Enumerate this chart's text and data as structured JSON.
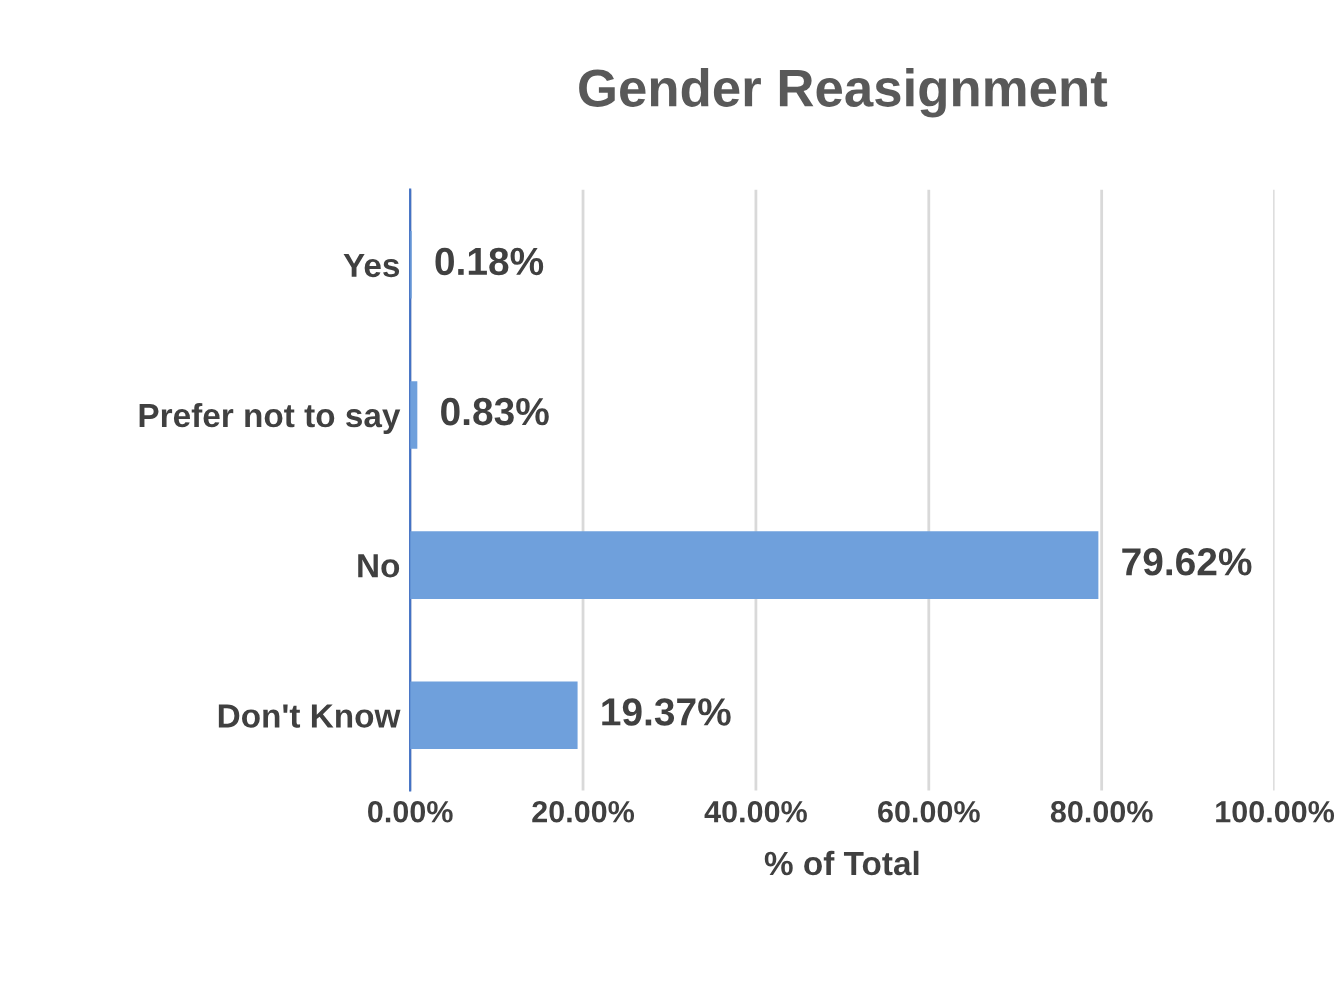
{
  "chart_data": {
    "type": "bar",
    "orientation": "horizontal",
    "title": "Gender Reasignment",
    "xlabel": "% of Total",
    "categories": [
      "Yes",
      "Prefer not to say",
      "No",
      "Don't Know"
    ],
    "values": [
      0.18,
      0.83,
      79.62,
      19.37
    ],
    "value_labels": [
      "0.18%",
      "0.83%",
      "79.62%",
      "19.37%"
    ],
    "color": "#6fa0dc",
    "xlim": [
      0,
      100
    ],
    "xticks": [
      {
        "value": 0,
        "label": "0.00%"
      },
      {
        "value": 20,
        "label": "20.00%"
      },
      {
        "value": 40,
        "label": "40.00%"
      },
      {
        "value": 60,
        "label": "60.00%"
      },
      {
        "value": 80,
        "label": "80.00%"
      },
      {
        "value": 100,
        "label": "100.00%"
      }
    ],
    "grid": "x",
    "legend": false
  }
}
